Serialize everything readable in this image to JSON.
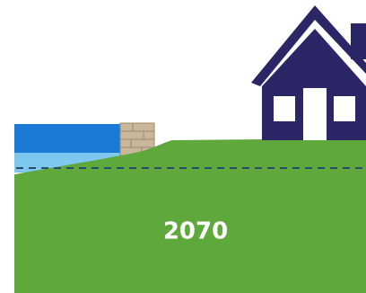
{
  "year_label": "2070",
  "colors": {
    "water_deep": "#1a7ad6",
    "water_shallow": "#7ec8f0",
    "ground": "#5fa83c",
    "house": "#2b2766",
    "window": "#ffffff",
    "wall_stone": "#c8b79a",
    "wall_stone_edge": "#9d8a6a",
    "water_line": "#2b4a6b"
  },
  "icons": [
    "house-icon",
    "stone-seawall"
  ]
}
